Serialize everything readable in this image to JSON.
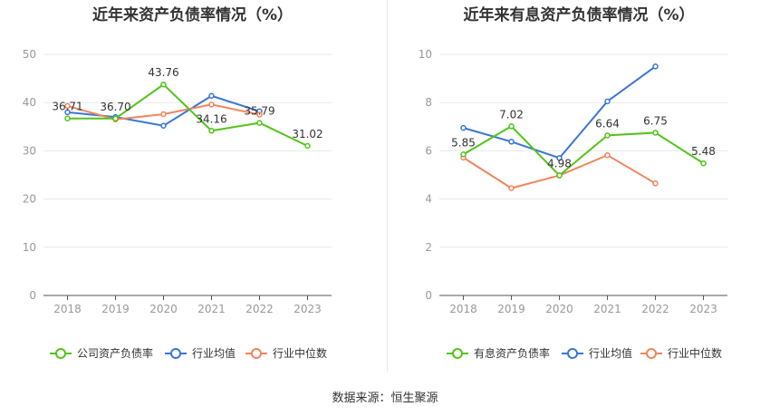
{
  "source": "数据来源：恒生聚源",
  "chart_data": [
    {
      "type": "line",
      "title": "近年来资产负债率情况（%）",
      "x": [
        "2018",
        "2019",
        "2020",
        "2021",
        "2022",
        "2023"
      ],
      "ylim": [
        0,
        50
      ],
      "yticks": [
        0,
        10,
        20,
        30,
        40,
        50
      ],
      "grid": true,
      "legend_position": "bottom",
      "series": [
        {
          "name": "公司资产负债率",
          "color": "#52c41a",
          "labeled": true,
          "values": [
            36.71,
            36.7,
            43.76,
            34.16,
            35.79,
            31.02
          ],
          "labels": [
            "36.71",
            "36.70",
            "43.76",
            "34.16",
            "35.79",
            "31.02"
          ]
        },
        {
          "name": "行业均值",
          "color": "#3a75d6",
          "labeled": false,
          "values": [
            38.0,
            37.0,
            35.2,
            41.4,
            38.2,
            null
          ]
        },
        {
          "name": "行业中位数",
          "color": "#f0855d",
          "labeled": false,
          "values": [
            39.3,
            36.5,
            37.6,
            39.6,
            37.5,
            null
          ]
        }
      ]
    },
    {
      "type": "line",
      "title": "近年来有息资产负债率情况（%）",
      "x": [
        "2018",
        "2019",
        "2020",
        "2021",
        "2022",
        "2023"
      ],
      "ylim": [
        0,
        10
      ],
      "yticks": [
        0,
        2,
        4,
        6,
        8,
        10
      ],
      "grid": true,
      "legend_position": "bottom",
      "series": [
        {
          "name": "有息资产负债率",
          "color": "#52c41a",
          "labeled": true,
          "values": [
            5.85,
            7.02,
            4.98,
            6.64,
            6.75,
            5.48
          ],
          "labels": [
            "5.85",
            "7.02",
            "4.98",
            "6.64",
            "6.75",
            "5.48"
          ]
        },
        {
          "name": "行业均值",
          "color": "#3a75d6",
          "labeled": false,
          "values": [
            6.95,
            6.38,
            5.7,
            8.05,
            9.5,
            null
          ]
        },
        {
          "name": "行业中位数",
          "color": "#f0855d",
          "labeled": false,
          "values": [
            5.72,
            4.45,
            4.98,
            5.82,
            4.65,
            null
          ]
        }
      ]
    }
  ]
}
